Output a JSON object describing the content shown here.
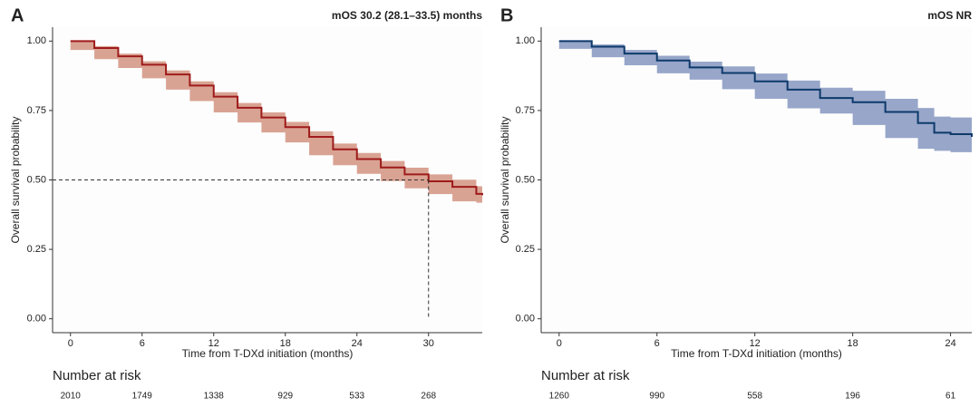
{
  "chart_data": [
    {
      "type": "line",
      "panel_label": "A",
      "title": "mOS 30.2 (28.1–33.5) months",
      "x_label": "Time from T-DXd initiation (months)",
      "y_label": "Overall survival probability",
      "x": [
        0,
        2,
        4,
        6,
        8,
        10,
        12,
        14,
        16,
        18,
        20,
        22,
        24,
        26,
        28,
        30,
        32,
        34,
        34.5
      ],
      "series": [
        {
          "color": "#9e1b1b",
          "band_color": "#d9a393",
          "values": [
            1,
            0.975,
            0.945,
            0.915,
            0.88,
            0.84,
            0.8,
            0.76,
            0.725,
            0.69,
            0.655,
            0.61,
            0.575,
            0.545,
            0.52,
            0.495,
            0.475,
            0.45,
            0.445
          ],
          "lower": [
            1,
            0.968,
            0.935,
            0.903,
            0.866,
            0.825,
            0.784,
            0.743,
            0.707,
            0.671,
            0.635,
            0.589,
            0.553,
            0.522,
            0.496,
            0.47,
            0.449,
            0.423,
            0.418
          ],
          "upper": [
            1,
            0.982,
            0.955,
            0.927,
            0.894,
            0.855,
            0.816,
            0.777,
            0.743,
            0.709,
            0.675,
            0.631,
            0.597,
            0.568,
            0.544,
            0.52,
            0.501,
            0.477,
            0.472
          ]
        }
      ],
      "reference": {
        "x": 30,
        "y": 0.5
      },
      "xlim": [
        -1.5,
        34.5
      ],
      "xticks": [
        0,
        6,
        12,
        18,
        24,
        30
      ],
      "ylim": [
        -0.05,
        1.05
      ],
      "yticks": [
        {
          "value": 0,
          "label": "0.00"
        },
        {
          "value": 0.25,
          "label": "0.25"
        },
        {
          "value": 0.5,
          "label": "0.50"
        },
        {
          "value": 0.75,
          "label": "0.75"
        },
        {
          "value": 1,
          "label": "1.00"
        }
      ],
      "risk_table": {
        "title": "Number at risk",
        "values": [
          2010,
          1749,
          1338,
          929,
          533,
          268
        ]
      }
    },
    {
      "type": "line",
      "panel_label": "B",
      "title": "mOS NR",
      "x_label": "Time from T-DXd initiation (months)",
      "y_label": "Overall survival probability",
      "x": [
        0,
        2,
        4,
        6,
        8,
        10,
        12,
        14,
        16,
        18,
        20,
        22,
        23,
        24,
        25.3
      ],
      "series": [
        {
          "color": "#0d3a6b",
          "band_color": "#97a6c9",
          "values": [
            1,
            0.98,
            0.955,
            0.93,
            0.905,
            0.885,
            0.855,
            0.825,
            0.795,
            0.78,
            0.745,
            0.705,
            0.67,
            0.665,
            0.655
          ],
          "lower": [
            1,
            0.972,
            0.942,
            0.913,
            0.884,
            0.861,
            0.827,
            0.792,
            0.758,
            0.739,
            0.698,
            0.651,
            0.612,
            0.605,
            0.6
          ],
          "upper": [
            1,
            0.988,
            0.968,
            0.947,
            0.926,
            0.909,
            0.883,
            0.858,
            0.832,
            0.821,
            0.792,
            0.759,
            0.728,
            0.725,
            0.71
          ]
        }
      ],
      "xlim": [
        -1.1,
        25.3
      ],
      "xticks": [
        0,
        6,
        12,
        18,
        24
      ],
      "ylim": [
        -0.05,
        1.05
      ],
      "yticks": [
        {
          "value": 0,
          "label": "0.00"
        },
        {
          "value": 0.25,
          "label": "0.25"
        },
        {
          "value": 0.5,
          "label": "0.50"
        },
        {
          "value": 0.75,
          "label": "0.75"
        },
        {
          "value": 1,
          "label": "1.00"
        }
      ],
      "risk_table": {
        "title": "Number at risk",
        "values": [
          1260,
          990,
          558,
          196,
          61
        ]
      }
    }
  ]
}
